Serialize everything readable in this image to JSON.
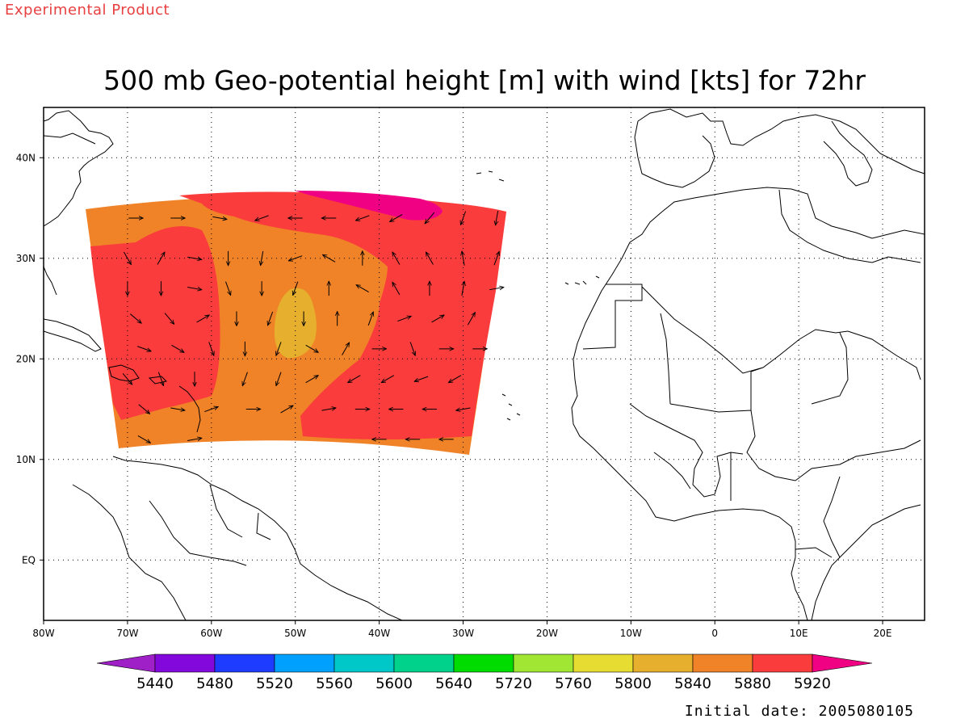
{
  "header": {
    "product_label": "Experimental Product",
    "title": "500 mb Geo-potential height [m] with wind [kts] for 72hr"
  },
  "footer": {
    "initial_date": "Initial date: 2005080105"
  },
  "map": {
    "lon_range": [
      -80,
      25
    ],
    "lat_range": [
      -6,
      45
    ],
    "x_ticks": [
      {
        "lon": -80,
        "label": "80W"
      },
      {
        "lon": -70,
        "label": "70W"
      },
      {
        "lon": -60,
        "label": "60W"
      },
      {
        "lon": -50,
        "label": "50W"
      },
      {
        "lon": -40,
        "label": "40W"
      },
      {
        "lon": -30,
        "label": "30W"
      },
      {
        "lon": -20,
        "label": "20W"
      },
      {
        "lon": -10,
        "label": "10W"
      },
      {
        "lon": 0,
        "label": "0"
      },
      {
        "lon": 10,
        "label": "10E"
      },
      {
        "lon": 20,
        "label": "20E"
      }
    ],
    "y_ticks": [
      {
        "lat": 40,
        "label": "40N"
      },
      {
        "lat": 30,
        "label": "30N"
      },
      {
        "lat": 20,
        "label": "20N"
      },
      {
        "lat": 10,
        "label": "10N"
      },
      {
        "lat": 0,
        "label": "EQ"
      }
    ],
    "grid": true,
    "land_outline_color": "#000000"
  },
  "colorbar": {
    "levels": [
      "5440",
      "5480",
      "5520",
      "5560",
      "5600",
      "5640",
      "5720",
      "5760",
      "5800",
      "5840",
      "5880",
      "5920"
    ],
    "colors": [
      "#a020c8",
      "#8208dc",
      "#1e3cff",
      "#00a0ff",
      "#00c8c8",
      "#00d28c",
      "#00dc00",
      "#a0e632",
      "#e6dc32",
      "#e6af2d",
      "#f08228",
      "#fa3c3c",
      "#f00082"
    ]
  },
  "field": {
    "domain_colors": {
      "h5840": "#e6af2d",
      "h5880": "#f08228",
      "h5920": "#fa3c3c",
      "h5960": "#f00082"
    },
    "wind_vectors": [
      {
        "lon": -69,
        "lat": 34,
        "dir": 90
      },
      {
        "lon": -64,
        "lat": 34,
        "dir": 90
      },
      {
        "lon": -59,
        "lat": 34,
        "dir": 100
      },
      {
        "lon": -54,
        "lat": 34,
        "dir": 250
      },
      {
        "lon": -50,
        "lat": 34,
        "dir": 270
      },
      {
        "lon": -46,
        "lat": 34,
        "dir": 270
      },
      {
        "lon": -42,
        "lat": 34,
        "dir": 250
      },
      {
        "lon": -38,
        "lat": 34,
        "dir": 240
      },
      {
        "lon": -34,
        "lat": 34,
        "dir": 220
      },
      {
        "lon": -30,
        "lat": 34,
        "dir": 200
      },
      {
        "lon": -26,
        "lat": 34,
        "dir": 190
      },
      {
        "lon": -70,
        "lat": 30,
        "dir": 150
      },
      {
        "lon": -66,
        "lat": 30,
        "dir": 30
      },
      {
        "lon": -62,
        "lat": 30,
        "dir": 100
      },
      {
        "lon": -58,
        "lat": 30,
        "dir": 180
      },
      {
        "lon": -54,
        "lat": 30,
        "dir": 190
      },
      {
        "lon": -50,
        "lat": 30,
        "dir": 250
      },
      {
        "lon": -46,
        "lat": 30,
        "dir": 300
      },
      {
        "lon": -42,
        "lat": 30,
        "dir": 0
      },
      {
        "lon": -38,
        "lat": 30,
        "dir": 330
      },
      {
        "lon": -34,
        "lat": 30,
        "dir": 330
      },
      {
        "lon": -30,
        "lat": 30,
        "dir": 350
      },
      {
        "lon": -26,
        "lat": 30,
        "dir": 20
      },
      {
        "lon": -70,
        "lat": 27,
        "dir": 180
      },
      {
        "lon": -66,
        "lat": 27,
        "dir": 180
      },
      {
        "lon": -62,
        "lat": 27,
        "dir": 100
      },
      {
        "lon": -58,
        "lat": 27,
        "dir": 160
      },
      {
        "lon": -54,
        "lat": 27,
        "dir": 180
      },
      {
        "lon": -50,
        "lat": 27,
        "dir": 200
      },
      {
        "lon": -46,
        "lat": 27,
        "dir": 0
      },
      {
        "lon": -42,
        "lat": 27,
        "dir": 300
      },
      {
        "lon": -38,
        "lat": 27,
        "dir": 330
      },
      {
        "lon": -34,
        "lat": 27,
        "dir": 0
      },
      {
        "lon": -30,
        "lat": 27,
        "dir": 10
      },
      {
        "lon": -26,
        "lat": 27,
        "dir": 80
      },
      {
        "lon": -69,
        "lat": 24,
        "dir": 130
      },
      {
        "lon": -65,
        "lat": 24,
        "dir": 140
      },
      {
        "lon": -61,
        "lat": 24,
        "dir": 60
      },
      {
        "lon": -57,
        "lat": 24,
        "dir": 180
      },
      {
        "lon": -53,
        "lat": 24,
        "dir": 200
      },
      {
        "lon": -49,
        "lat": 24,
        "dir": 180
      },
      {
        "lon": -45,
        "lat": 24,
        "dir": 0
      },
      {
        "lon": -41,
        "lat": 24,
        "dir": 20
      },
      {
        "lon": -37,
        "lat": 24,
        "dir": 70
      },
      {
        "lon": -33,
        "lat": 24,
        "dir": 60
      },
      {
        "lon": -29,
        "lat": 24,
        "dir": 30
      },
      {
        "lon": -68,
        "lat": 21,
        "dir": 110
      },
      {
        "lon": -64,
        "lat": 21,
        "dir": 120
      },
      {
        "lon": -60,
        "lat": 21,
        "dir": 160
      },
      {
        "lon": -56,
        "lat": 21,
        "dir": 180
      },
      {
        "lon": -52,
        "lat": 21,
        "dir": 200
      },
      {
        "lon": -48,
        "lat": 21,
        "dir": 120
      },
      {
        "lon": -44,
        "lat": 21,
        "dir": 30
      },
      {
        "lon": -40,
        "lat": 21,
        "dir": 90
      },
      {
        "lon": -36,
        "lat": 21,
        "dir": 160
      },
      {
        "lon": -32,
        "lat": 21,
        "dir": 90
      },
      {
        "lon": -28,
        "lat": 21,
        "dir": 90
      },
      {
        "lon": -70,
        "lat": 18,
        "dir": 140
      },
      {
        "lon": -66,
        "lat": 18,
        "dir": 160
      },
      {
        "lon": -62,
        "lat": 18,
        "dir": 180
      },
      {
        "lon": -56,
        "lat": 18,
        "dir": 200
      },
      {
        "lon": -52,
        "lat": 18,
        "dir": 200
      },
      {
        "lon": -48,
        "lat": 18,
        "dir": 60
      },
      {
        "lon": -43,
        "lat": 18,
        "dir": 240
      },
      {
        "lon": -39,
        "lat": 18,
        "dir": 240
      },
      {
        "lon": -35,
        "lat": 18,
        "dir": 250
      },
      {
        "lon": -31,
        "lat": 18,
        "dir": 240
      },
      {
        "lon": -68,
        "lat": 15,
        "dir": 130
      },
      {
        "lon": -64,
        "lat": 15,
        "dir": 100
      },
      {
        "lon": -60,
        "lat": 15,
        "dir": 70
      },
      {
        "lon": -55,
        "lat": 15,
        "dir": 90
      },
      {
        "lon": -51,
        "lat": 15,
        "dir": 60
      },
      {
        "lon": -46,
        "lat": 15,
        "dir": 80
      },
      {
        "lon": -42,
        "lat": 15,
        "dir": 90
      },
      {
        "lon": -38,
        "lat": 15,
        "dir": 270
      },
      {
        "lon": -34,
        "lat": 15,
        "dir": 270
      },
      {
        "lon": -30,
        "lat": 15,
        "dir": 260
      },
      {
        "lon": -68,
        "lat": 12,
        "dir": 120
      },
      {
        "lon": -62,
        "lat": 12,
        "dir": 80
      },
      {
        "lon": -40,
        "lat": 12,
        "dir": 270
      },
      {
        "lon": -36,
        "lat": 12,
        "dir": 270
      },
      {
        "lon": -32,
        "lat": 12,
        "dir": 270
      }
    ]
  }
}
